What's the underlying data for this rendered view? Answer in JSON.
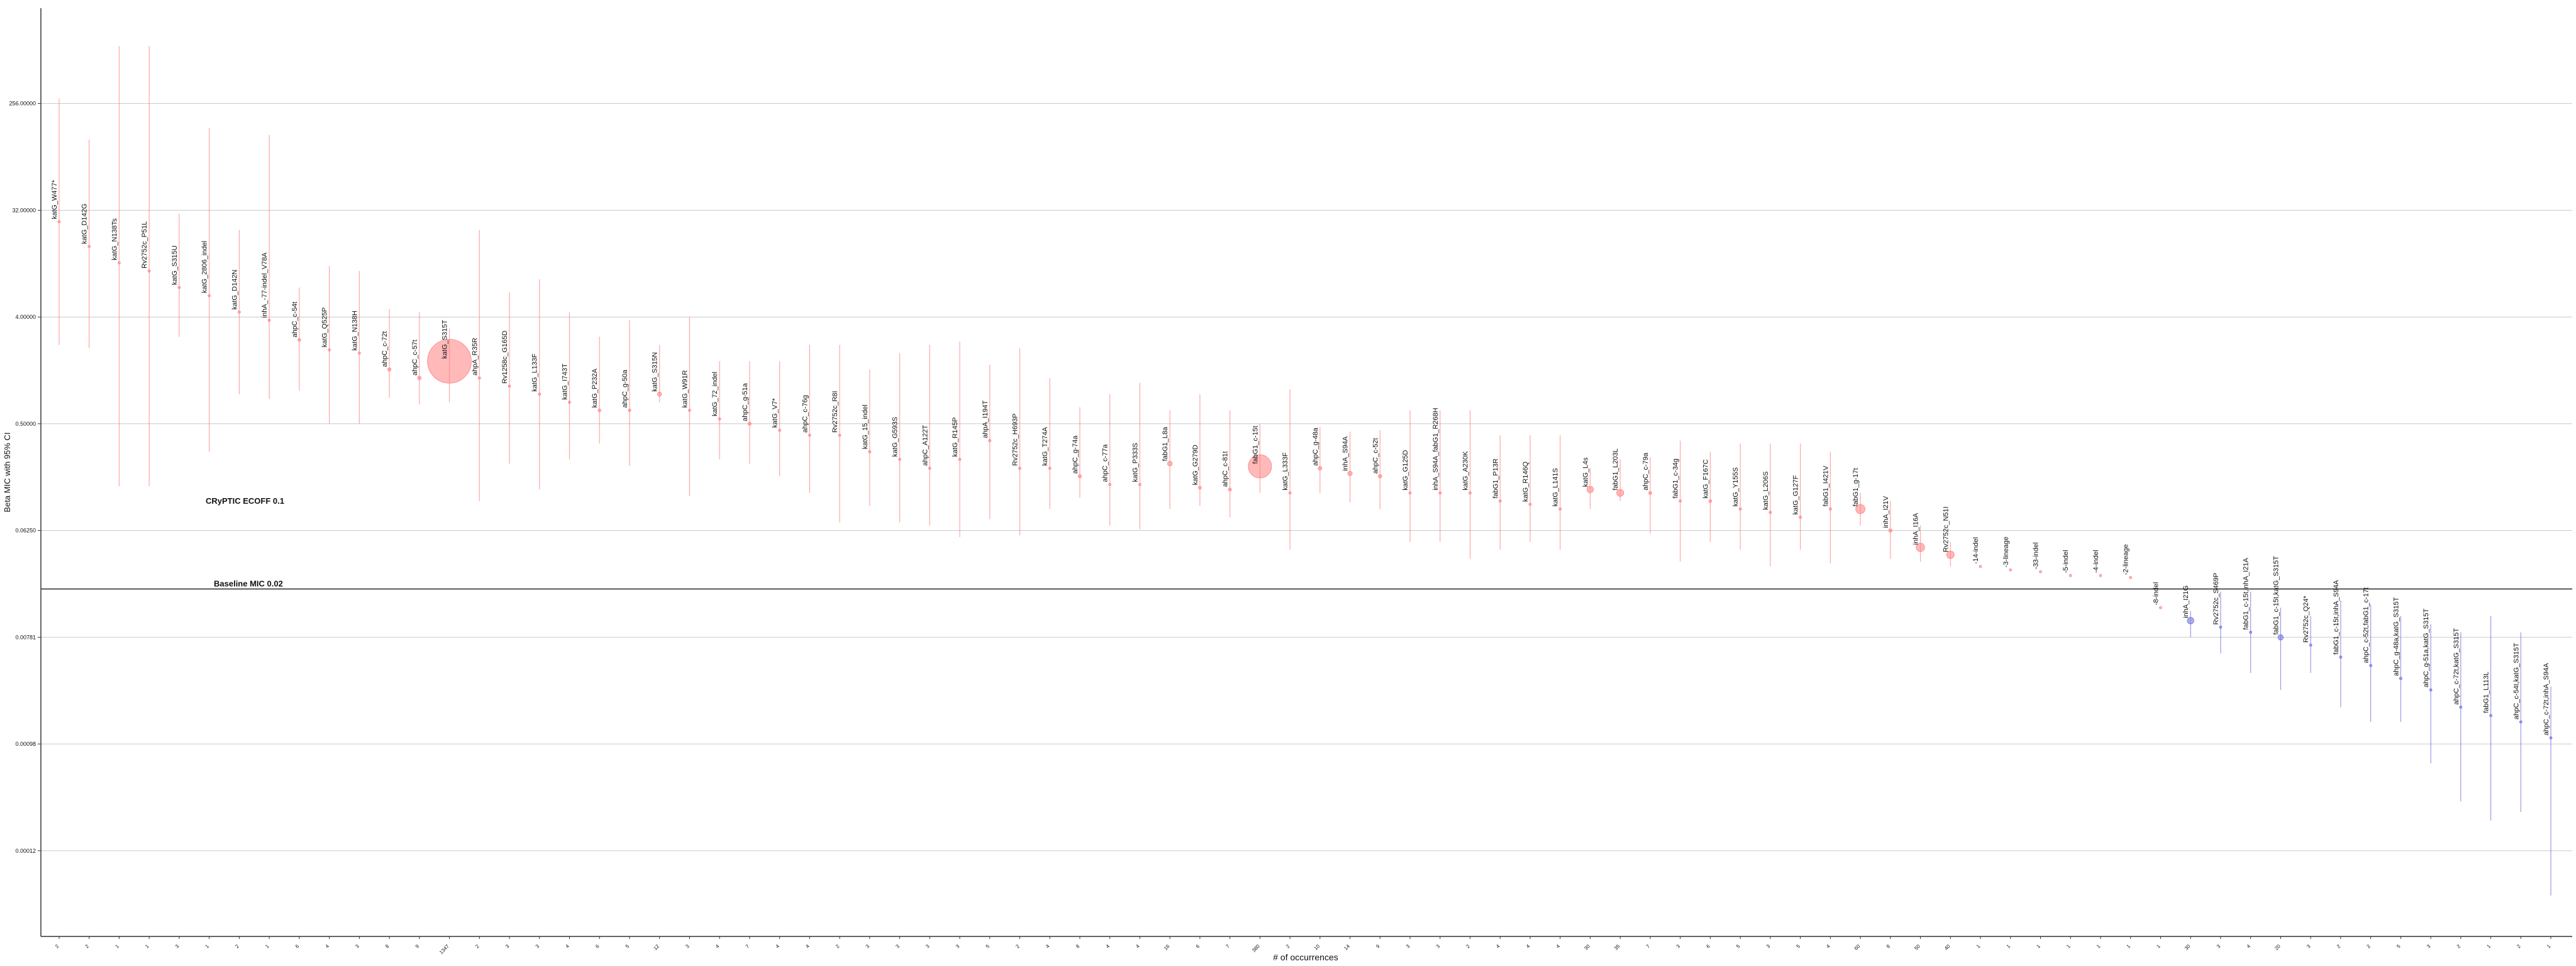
{
  "chart_data": {
    "type": "scatter",
    "y_label": "Beta MIC with 95% CI",
    "x_label": "# of occurrences",
    "log_scale": true,
    "grid": true,
    "ylim": [
      2.3e-05,
      1640
    ],
    "yticks": [
      {
        "value": 256,
        "label": "256.00000"
      },
      {
        "value": 32,
        "label": "32.00000"
      },
      {
        "value": 4,
        "label": "4.00000"
      },
      {
        "value": 0.5,
        "label": "0.50000"
      },
      {
        "value": 0.0625,
        "label": "0.06250"
      },
      {
        "value": 0.0078125,
        "label": "0.00781"
      },
      {
        "value": 0.0009765625,
        "label": "0.00098"
      },
      {
        "value": 0.0001220703125,
        "label": "0.00012"
      }
    ],
    "annotations": [
      {
        "text": "CRyPTIC ECOFF 0.1",
        "value": 0.1
      },
      {
        "text": "Baseline MIC 0.02",
        "value": 0.02
      }
    ],
    "series": [
      {
        "color": "#ff8080",
        "labels": [
          "katG_W477*",
          "katG_D142G",
          "katG_N138Ts",
          "Rv2752c_P51L",
          "katG_S315U",
          "katG_2806_indel",
          "katG_D142N",
          "inhA_-77-indel_V78A",
          "ahpC_c-54t",
          "katG_Q525P",
          "katG_N138H",
          "ahpC_c-72t",
          "ahpC_c-57t",
          "katG_S315T",
          "ahpA_R35R",
          "Rv1258c_G165D",
          "katG_L133F",
          "katG_I743T",
          "katG_P232A",
          "ahpC_g-50a",
          "katG_S315N",
          "katG_W91R",
          "katG_72_indel",
          "ahpC_g-51a",
          "katG_V7*",
          "ahpC_c-76g",
          "Rv2752c_R8I",
          "katG_15_indel",
          "katG_G593S",
          "ahpC_A122T",
          "katG_R145P",
          "ahpA_I194T",
          "Rv2752c_H693P",
          "katG_T274A",
          "ahpC_g-74a",
          "ahpC_c-77a",
          "katG_P333S",
          "fabG1_L8a",
          "katG_G279D",
          "ahpC_c-81t",
          "fabG1_c-15t",
          "katG_L333F",
          "ahpC_g-48a",
          "inhA_S94A",
          "ahpC_c-52t",
          "katG_G125D",
          "inhA_S94A_fabG1_R268H",
          "katG_A230K",
          "fabG1_P13R",
          "katG_R146Q",
          "katG_L141S",
          "katG_L4s",
          "fabG1_L203L",
          "ahpC_c-79a",
          "fabG1_c-34g",
          "katG_F167C",
          "katG_Y155S",
          "katG_L206S",
          "katG_G127F",
          "fabG1_I421V",
          "fabG1_g-17t",
          "inhA_I21V",
          "inhA_I16A",
          "Rv2752c_N51I",
          "-14-indel",
          "-3-lineage",
          "-33-indel",
          "-5-indel",
          "-4-indel",
          "-2-lineage",
          "-8-indel"
        ],
        "counts": [
          2,
          2,
          1,
          1,
          3,
          1,
          2,
          1,
          6,
          4,
          3,
          8,
          9,
          1347,
          2,
          3,
          3,
          4,
          6,
          5,
          12,
          3,
          4,
          7,
          4,
          4,
          2,
          3,
          3,
          3,
          3,
          5,
          2,
          4,
          8,
          4,
          4,
          16,
          6,
          7,
          380,
          2,
          10,
          14,
          9,
          3,
          3,
          2,
          4,
          4,
          4,
          30,
          35,
          7,
          3,
          6,
          5,
          3,
          5,
          4,
          60,
          8,
          50,
          40,
          1,
          1,
          1,
          1,
          1,
          1,
          1
        ],
        "values": [
          25.6,
          15.8,
          11.5,
          9.8,
          7.1,
          6.06,
          4.4,
          3.75,
          2.56,
          2.11,
          1.98,
          1.44,
          1.22,
          1.69,
          1.22,
          1.04,
          0.89,
          0.76,
          0.65,
          0.65,
          0.89,
          0.65,
          0.55,
          0.5,
          0.44,
          0.4,
          0.4,
          0.29,
          0.25,
          0.21,
          0.25,
          0.36,
          0.21,
          0.21,
          0.18,
          0.153,
          0.153,
          0.23,
          0.144,
          0.139,
          0.218,
          0.13,
          0.21,
          0.19,
          0.18,
          0.13,
          0.13,
          0.13,
          0.111,
          0.104,
          0.095,
          0.139,
          0.13,
          0.13,
          0.111,
          0.111,
          0.095,
          0.089,
          0.081,
          0.095,
          0.095,
          0.0625,
          0.045,
          0.039,
          0.031,
          0.029,
          0.028,
          0.026,
          0.026,
          0.025,
          0.0139
        ],
        "ci_low": [
          2.32,
          2.18,
          0.148,
          0.148,
          2.72,
          0.29,
          0.89,
          0.81,
          0.95,
          0.5,
          0.5,
          0.83,
          0.73,
          0.76,
          0.111,
          0.23,
          0.139,
          0.25,
          0.34,
          0.22,
          0.76,
          0.122,
          0.25,
          0.23,
          0.18,
          0.13,
          0.073,
          0.101,
          0.073,
          0.069,
          0.055,
          0.078,
          0.057,
          0.095,
          0.118,
          0.069,
          0.064,
          0.095,
          0.101,
          0.081,
          0.13,
          0.043,
          0.13,
          0.108,
          0.095,
          0.05,
          0.05,
          0.036,
          0.043,
          0.05,
          0.043,
          0.095,
          0.111,
          0.059,
          0.034,
          0.05,
          0.043,
          0.031,
          0.043,
          0.033,
          0.069,
          0.036,
          0.034,
          0.031,
          null,
          null,
          null,
          null,
          null,
          null,
          null
        ],
        "ci_high": [
          282,
          127,
          784,
          784,
          30,
          158,
          21.8,
          139,
          7.1,
          10.8,
          9.8,
          4.69,
          4.4,
          3.2,
          21.8,
          6.46,
          8.35,
          4.4,
          2.72,
          3.75,
          2.32,
          4,
          1.69,
          1.69,
          1.69,
          2.32,
          2.32,
          1.44,
          1.98,
          2.32,
          2.48,
          1.58,
          2.18,
          1.22,
          0.69,
          0.89,
          1.11,
          0.65,
          0.89,
          0.65,
          0.5,
          0.98,
          0.47,
          0.43,
          0.44,
          0.65,
          0.65,
          0.65,
          0.4,
          0.4,
          0.4,
          0.21,
          0.25,
          0.26,
          0.36,
          0.29,
          0.34,
          0.34,
          0.34,
          0.29,
          0.13,
          0.111,
          0.069,
          0.05,
          null,
          null,
          null,
          null,
          null,
          null,
          null
        ]
      },
      {
        "color": "#6f6fe0",
        "labels": [
          "inhA_I21G",
          "Rv2752c_S469P",
          "fabG1_c-15t,inhA_I21A",
          "fabG1_c-15t,katG_S315T",
          "Rv2752c_Q24*",
          "fabG1_c-15t,inhA_S94A",
          "ahpC_c-52t,fabG1_c-17t",
          "ahpC_g-48a,katG_S315T",
          "ahpC_g-51a,katG_S315T",
          "ahpC_c-72t,katG_S315T",
          "fabG1_L113L",
          "ahpC_c-54t,katG_S315T",
          "ahpC_c-72t,inhA_S94A"
        ],
        "counts": [
          30,
          3,
          4,
          20,
          3,
          2,
          2,
          5,
          3,
          2,
          1,
          2,
          1
        ],
        "values": [
          0.0108,
          0.0095,
          0.0086,
          0.0078,
          0.0067,
          0.0053,
          0.0045,
          0.0035,
          0.0028,
          0.002,
          0.0017,
          0.0015,
          0.0011
        ],
        "ci_low": [
          0.0078,
          0.0057,
          0.0039,
          0.0028,
          0.0039,
          0.002,
          0.0015,
          0.0015,
          0.00067,
          0.00032,
          0.00022,
          0.00026,
          5.1e-05
        ],
        "ci_high": [
          0.013,
          0.019,
          0.019,
          0.0139,
          0.0118,
          0.016,
          0.0148,
          0.0118,
          0.0101,
          0.0086,
          0.0118,
          0.0086,
          0.003
        ]
      }
    ]
  }
}
